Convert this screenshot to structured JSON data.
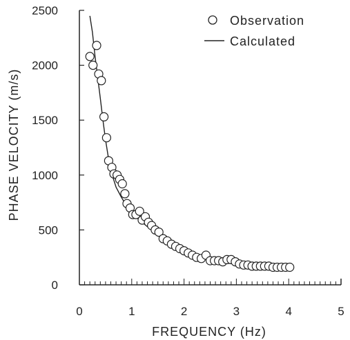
{
  "chart_data": {
    "type": "scatter",
    "xlabel": "FREQUENCY (Hz)",
    "ylabel": "PHASE VELOCITY (m/s)",
    "xlim": [
      0,
      5
    ],
    "ylim": [
      0,
      2500
    ],
    "x_ticks": [
      0,
      1,
      2,
      3,
      4,
      5
    ],
    "y_ticks": [
      0,
      500,
      1000,
      1500,
      2000,
      2500
    ],
    "x_tick_labels": [
      "0",
      "1",
      "2",
      "3",
      "4",
      "5"
    ],
    "y_tick_labels": [
      "0",
      "500",
      "1000",
      "1500",
      "2000",
      "2500"
    ],
    "grid": false,
    "legend_position": "top-right",
    "legend": {
      "observation_label": "Observation",
      "calculated_label": "Calculated"
    },
    "series": [
      {
        "name": "Observation",
        "type": "scatter",
        "marker": "open-circle",
        "x": [
          0.2,
          0.26,
          0.33,
          0.37,
          0.42,
          0.47,
          0.52,
          0.56,
          0.62,
          0.66,
          0.72,
          0.77,
          0.82,
          0.87,
          0.91,
          0.97,
          1.02,
          1.08,
          1.15,
          1.2,
          1.26,
          1.32,
          1.38,
          1.45,
          1.52,
          1.6,
          1.68,
          1.76,
          1.84,
          1.92,
          2.0,
          2.08,
          2.16,
          2.24,
          2.33,
          2.42,
          2.5,
          2.58,
          2.66,
          2.74,
          2.82,
          2.9,
          2.98,
          3.06,
          3.14,
          3.22,
          3.3,
          3.38,
          3.46,
          3.54,
          3.62,
          3.7,
          3.78,
          3.86,
          3.94,
          4.02
        ],
        "y": [
          2080,
          2000,
          2180,
          1920,
          1860,
          1530,
          1340,
          1130,
          1070,
          1010,
          1000,
          960,
          920,
          830,
          740,
          700,
          640,
          640,
          670,
          590,
          620,
          570,
          540,
          500,
          480,
          420,
          400,
          370,
          350,
          330,
          310,
          290,
          270,
          250,
          240,
          270,
          220,
          220,
          220,
          210,
          230,
          230,
          210,
          190,
          180,
          180,
          170,
          170,
          170,
          170,
          170,
          160,
          160,
          160,
          160,
          160
        ]
      },
      {
        "name": "Calculated",
        "type": "line",
        "x": [
          0.2,
          0.25,
          0.3,
          0.35,
          0.4,
          0.45,
          0.5,
          0.55,
          0.6,
          0.7,
          0.8,
          0.9,
          1.0,
          1.1,
          1.2,
          1.3,
          1.4,
          1.5,
          1.6,
          1.8,
          2.0,
          2.2,
          2.4,
          2.6,
          2.8,
          3.0,
          3.2,
          3.4,
          3.6,
          3.8,
          4.0
        ],
        "y": [
          2450,
          2300,
          2080,
          1890,
          1700,
          1500,
          1320,
          1170,
          1040,
          890,
          800,
          720,
          660,
          610,
          570,
          530,
          490,
          460,
          420,
          370,
          320,
          280,
          250,
          225,
          205,
          190,
          180,
          172,
          166,
          162,
          160
        ]
      }
    ]
  }
}
